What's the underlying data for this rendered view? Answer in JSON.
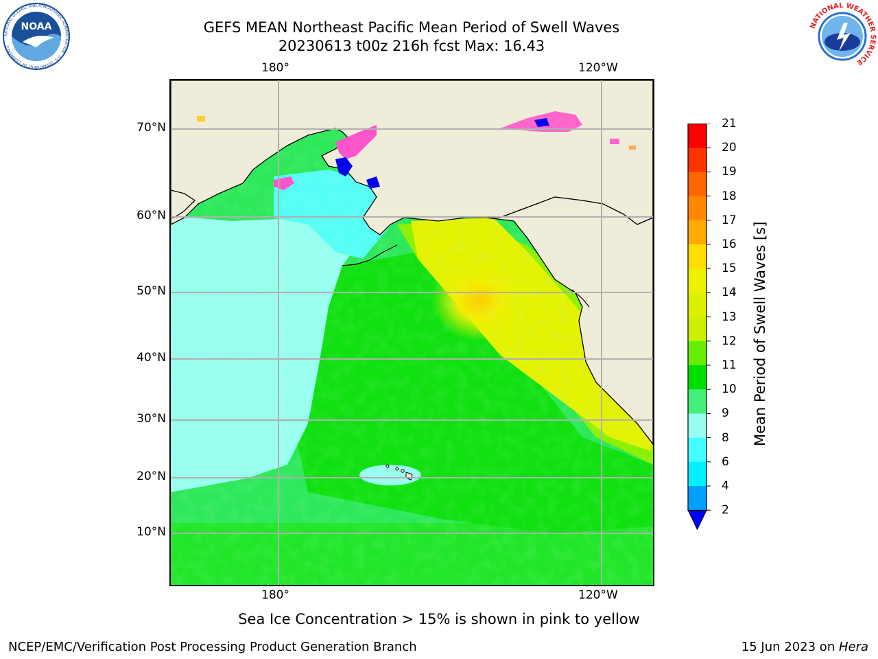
{
  "header": {
    "title_line1": "GEFS MEAN Northeast Pacific Mean Period of Swell Waves",
    "title_line2": "20230613 t00z 216h fcst   Max: 16.43",
    "left_logo_text": "NOAA",
    "left_logo_ring_text": "NATIONAL OCEANIC AND ATMOSPHERIC ADMINISTRATION · U.S. DEPARTMENT OF COMMERCE",
    "right_logo_ring_text": "NATIONAL WEATHER SERVICE"
  },
  "map": {
    "lon_labels_top": [
      "180°",
      "120°W"
    ],
    "lon_labels_bottom": [
      "180°",
      "120°W"
    ],
    "lat_labels": [
      "70°N",
      "60°N",
      "50°N",
      "40°N",
      "30°N",
      "20°N",
      "10°N"
    ],
    "colors": {
      "land": "#efedd9",
      "ocean_base": "#2ee85a",
      "grid": "#b0b0b0",
      "coast": "#000000"
    }
  },
  "colorbar": {
    "label": "Mean Period of Swell Waves [s]",
    "ticks": [
      "21",
      "20",
      "19",
      "18",
      "17",
      "16",
      "15",
      "14",
      "13",
      "12",
      "11",
      "10",
      "9",
      "8",
      "6",
      "4",
      "2"
    ],
    "colors": [
      "#ff0000",
      "#ff3300",
      "#ff6600",
      "#ff8800",
      "#ffaa00",
      "#ffdd00",
      "#eef000",
      "#ddf000",
      "#ccf000",
      "#66ee00",
      "#00e000",
      "#44ee77",
      "#99ffee",
      "#44ffff",
      "#00f0ff",
      "#00a0ff",
      "#0000ff"
    ]
  },
  "footer": {
    "note": "Sea Ice Concentration > 15% is shown in pink to yellow",
    "credit": "NCEP/EMC/Verification Post Processing Product Generation Branch",
    "date_text": "15 Jun 2023 on ",
    "host": "Hera"
  }
}
